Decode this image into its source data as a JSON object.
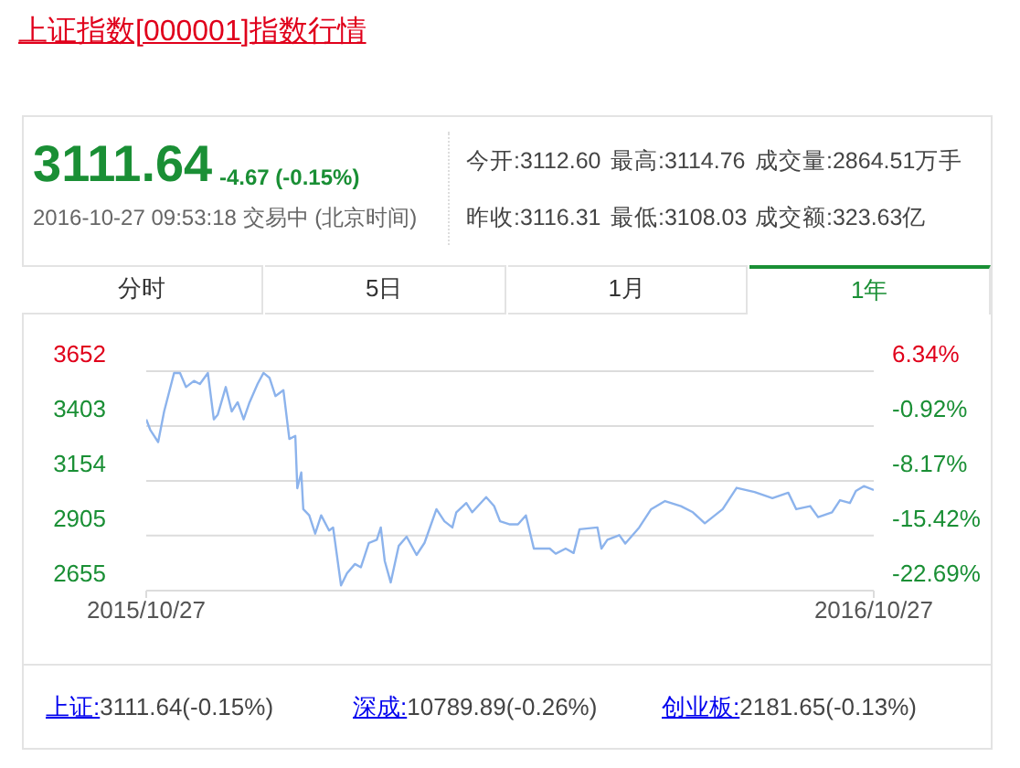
{
  "chart_data": {
    "type": "line",
    "title": "上证指数[000001]指数行情",
    "x": [
      "2015-10-27",
      "2015-10-29",
      "2015-11-02",
      "2015-11-05",
      "2015-11-10",
      "2015-11-13",
      "2015-11-16",
      "2015-11-20",
      "2015-11-23",
      "2015-11-27",
      "2015-11-30",
      "2015-12-02",
      "2015-12-06",
      "2015-12-09",
      "2015-12-12",
      "2015-12-15",
      "2015-12-18",
      "2015-12-22",
      "2015-12-25",
      "2015-12-28",
      "2015-12-31",
      "2016-01-04",
      "2016-01-07",
      "2016-01-10",
      "2016-01-11",
      "2016-01-13",
      "2016-01-14",
      "2016-01-17",
      "2016-01-20",
      "2016-01-23",
      "2016-01-27",
      "2016-01-29",
      "2016-02-02",
      "2016-02-05",
      "2016-02-09",
      "2016-02-12",
      "2016-02-16",
      "2016-02-20",
      "2016-02-22",
      "2016-02-24",
      "2016-02-27",
      "2016-03-02",
      "2016-03-06",
      "2016-03-11",
      "2016-03-15",
      "2016-03-21",
      "2016-03-25",
      "2016-03-29",
      "2016-03-31",
      "2016-04-05",
      "2016-04-08",
      "2016-04-15",
      "2016-04-19",
      "2016-04-22",
      "2016-04-27",
      "2016-05-01",
      "2016-05-05",
      "2016-05-09",
      "2016-05-17",
      "2016-05-20",
      "2016-05-25",
      "2016-05-29",
      "2016-06-01",
      "2016-06-10",
      "2016-06-12",
      "2016-06-15",
      "2016-06-21",
      "2016-06-24",
      "2016-07-01",
      "2016-07-07",
      "2016-07-14",
      "2016-07-22",
      "2016-07-28",
      "2016-08-03",
      "2016-08-12",
      "2016-08-19",
      "2016-08-28",
      "2016-09-06",
      "2016-09-14",
      "2016-09-18",
      "2016-09-25",
      "2016-09-29",
      "2016-10-06",
      "2016-10-10",
      "2016-10-15",
      "2016-10-18",
      "2016-10-22",
      "2016-10-27"
    ],
    "series": [
      {
        "color": "#8cb3ec",
        "values": [
          3433,
          3386,
          3330,
          3469,
          3644,
          3644,
          3580,
          3608,
          3594,
          3644,
          3433,
          3455,
          3580,
          3469,
          3511,
          3433,
          3511,
          3594,
          3644,
          3622,
          3539,
          3566,
          3344,
          3358,
          3120,
          3192,
          3025,
          2997,
          2914,
          2997,
          2928,
          2942,
          2679,
          2734,
          2776,
          2761,
          2872,
          2886,
          2942,
          2789,
          2692,
          2858,
          2900,
          2817,
          2872,
          3025,
          2970,
          2942,
          3011,
          3053,
          3011,
          3080,
          3039,
          2970,
          2956,
          2956,
          2997,
          2846,
          2846,
          2823,
          2846,
          2826,
          2934,
          2942,
          2846,
          2886,
          2907,
          2869,
          2942,
          3025,
          3062,
          3039,
          3011,
          2961,
          3025,
          3122,
          3103,
          3075,
          3100,
          3025,
          3039,
          2989,
          3011,
          3066,
          3053,
          3108,
          3130,
          3112
        ]
      }
    ],
    "xlim": [
      "2015-10-27",
      "2016-10-27"
    ],
    "xticks": [
      {
        "value": "2015-10-27",
        "label": "2015/10/27"
      },
      {
        "value": "2016-10-27",
        "label": "2016/10/27"
      }
    ],
    "ylim": [
      2655,
      3652
    ],
    "yticks": [
      2655,
      2905,
      3154,
      3403,
      3652
    ],
    "y2lim": [
      -22.69,
      6.34
    ],
    "y2ticks": [
      {
        "value": -22.69,
        "label": "-22.69%"
      },
      {
        "value": -15.42,
        "label": "-15.42%"
      },
      {
        "value": -8.17,
        "label": "-8.17%"
      },
      {
        "value": -0.92,
        "label": "-0.92%"
      },
      {
        "value": 6.34,
        "label": "6.34%"
      }
    ],
    "grid": "y",
    "legend": false,
    "marker": "none",
    "line_style": "solid",
    "annotations": [
      "3111.64",
      "-4.67 (-0.15%)",
      "2016-10-27 09:53:18 交易中 (北京时间)",
      "今开:3112.60",
      "最高:3114.76",
      "成交量:2864.51万手",
      "昨收:3116.31",
      "最低:3108.03",
      "成交额:323.63亿",
      "分时",
      "5日",
      "1月",
      "1年",
      "上证:3111.64(-0.15%)",
      "深成:10789.89(-0.26%)",
      "创业板:2181.65(-0.13%)"
    ]
  }
}
